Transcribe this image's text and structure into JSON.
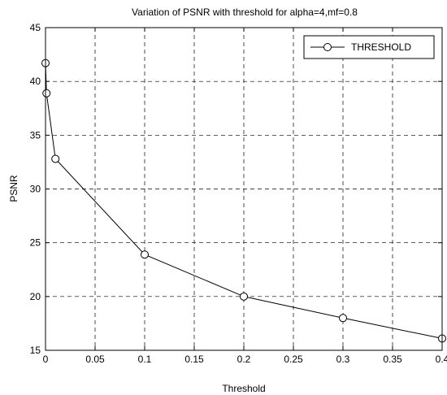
{
  "chart_data": {
    "type": "line",
    "title": "Variation of PSNR  with threshold for alpha=4,mf=0.8",
    "xlabel": "Threshold",
    "ylabel": "PSNR",
    "xlim": [
      0,
      0.4
    ],
    "ylim": [
      15,
      45
    ],
    "xticks": [
      0,
      0.05,
      0.1,
      0.15,
      0.2,
      0.25,
      0.3,
      0.35,
      0.4
    ],
    "xtick_labels": [
      "0",
      "0.05",
      "0.1",
      "0.15",
      "0.2",
      "0.25",
      "0.3",
      "0.35",
      "0.4"
    ],
    "yticks": [
      15,
      20,
      25,
      30,
      35,
      40,
      45
    ],
    "ytick_labels": [
      "15",
      "20",
      "25",
      "30",
      "35",
      "40",
      "45"
    ],
    "grid": true,
    "legend_position": "top-right",
    "series": [
      {
        "name": "THRESHOLD",
        "marker": "circle",
        "color": "#000000",
        "x": [
          0,
          0.001,
          0.01,
          0.1,
          0.2,
          0.3,
          0.4
        ],
        "y": [
          41.7,
          38.9,
          32.8,
          23.9,
          20.0,
          18.0,
          16.1
        ]
      }
    ]
  }
}
